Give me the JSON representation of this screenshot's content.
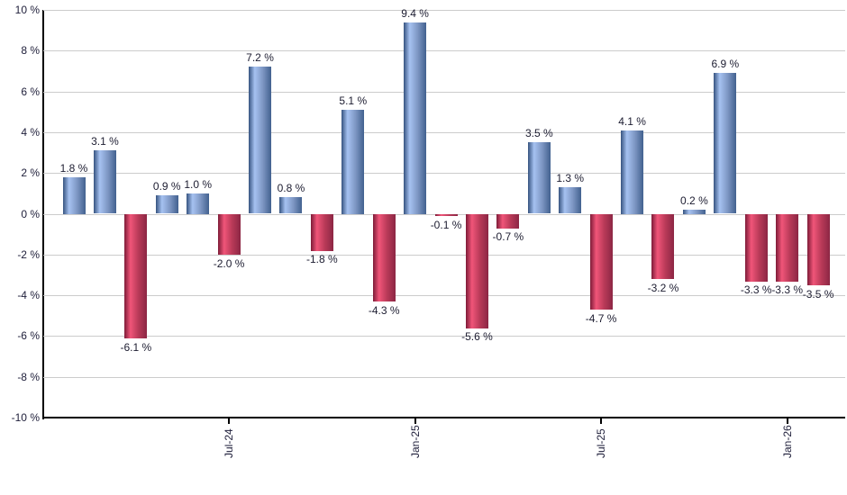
{
  "chart_data": {
    "type": "bar",
    "title": "",
    "description": "Monthly returns bar chart, positive months blue, negative months red",
    "values": [
      1.8,
      3.1,
      -6.1,
      0.9,
      1.0,
      -2.0,
      7.2,
      0.8,
      -1.8,
      5.1,
      -4.3,
      9.4,
      -0.1,
      -5.6,
      -0.7,
      3.5,
      1.3,
      -4.7,
      4.1,
      -3.2,
      0.2,
      6.9,
      -3.3,
      -3.3,
      -3.5
    ],
    "bar_labels": [
      "1.8 %",
      "3.1 %",
      "-6.1 %",
      "0.9 %",
      "1.0 %",
      "-2.0 %",
      "7.2 %",
      "0.8 %",
      "-1.8 %",
      "5.1 %",
      "-4.3 %",
      "9.4 %",
      "-0.1 %",
      "-5.6 %",
      "-0.7 %",
      "3.5 %",
      "1.3 %",
      "-4.7 %",
      "4.1 %",
      "-3.2 %",
      "0.2 %",
      "6.9 %",
      "-3.3 %",
      "-3.3 %",
      "-3.5 %"
    ],
    "x_ticks": [
      {
        "label": "Jul-24",
        "index": 5
      },
      {
        "label": "Jan-25",
        "index": 11
      },
      {
        "label": "Jul-25",
        "index": 17
      },
      {
        "label": "Jan-26",
        "index": 23
      }
    ],
    "y_ticks": [
      {
        "label": "10 %",
        "value": 10
      },
      {
        "label": "8 %",
        "value": 8
      },
      {
        "label": "6 %",
        "value": 6
      },
      {
        "label": "4 %",
        "value": 4
      },
      {
        "label": "2 %",
        "value": 2
      },
      {
        "label": "0 %",
        "value": 0
      },
      {
        "label": "-2 %",
        "value": -2
      },
      {
        "label": "-4 %",
        "value": -4
      },
      {
        "label": "-6 %",
        "value": -6
      },
      {
        "label": "-8 %",
        "value": -8
      },
      {
        "label": "-10 %",
        "value": -10
      }
    ],
    "ylim": [
      -10,
      10
    ],
    "grid": true,
    "legend": "none",
    "colors": {
      "positive_bar_gradient": [
        "#365380",
        "#a6c2f1",
        "#7e97c4",
        "#42618f"
      ],
      "negative_bar_gradient": [
        "#7e1b37",
        "#f05579",
        "#b93a58",
        "#8c2644"
      ],
      "gridline": "#cccccc",
      "axis": "#000000",
      "label_text": "#21213c"
    }
  }
}
